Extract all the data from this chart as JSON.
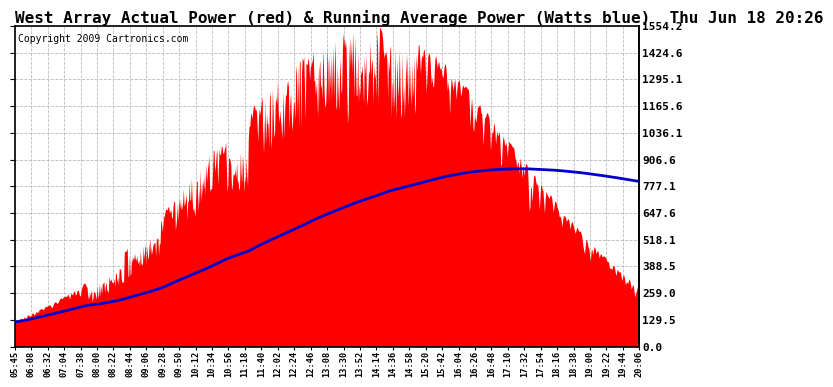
{
  "title": "West Array Actual Power (red) & Running Average Power (Watts blue)  Thu Jun 18 20:26",
  "copyright": "Copyright 2009 Cartronics.com",
  "yticks": [
    0.0,
    129.5,
    259.0,
    388.5,
    518.1,
    647.6,
    777.1,
    906.6,
    1036.1,
    1165.6,
    1295.1,
    1424.6,
    1554.2
  ],
  "ymax": 1554.2,
  "xtick_labels": [
    "05:45",
    "06:08",
    "06:32",
    "07:04",
    "07:38",
    "08:00",
    "08:22",
    "08:44",
    "09:06",
    "09:28",
    "09:50",
    "10:12",
    "10:34",
    "10:56",
    "11:18",
    "11:40",
    "12:02",
    "12:24",
    "12:46",
    "13:08",
    "13:30",
    "13:52",
    "14:14",
    "14:36",
    "14:58",
    "15:20",
    "15:42",
    "16:04",
    "16:26",
    "16:48",
    "17:10",
    "17:32",
    "17:54",
    "18:16",
    "18:38",
    "19:00",
    "19:22",
    "19:44",
    "20:06"
  ],
  "bg": "#ffffff",
  "red": "#ff0000",
  "blue": "#0000cc",
  "grid": "#bbbbbb",
  "title_fs": 11.5,
  "copy_fs": 7
}
